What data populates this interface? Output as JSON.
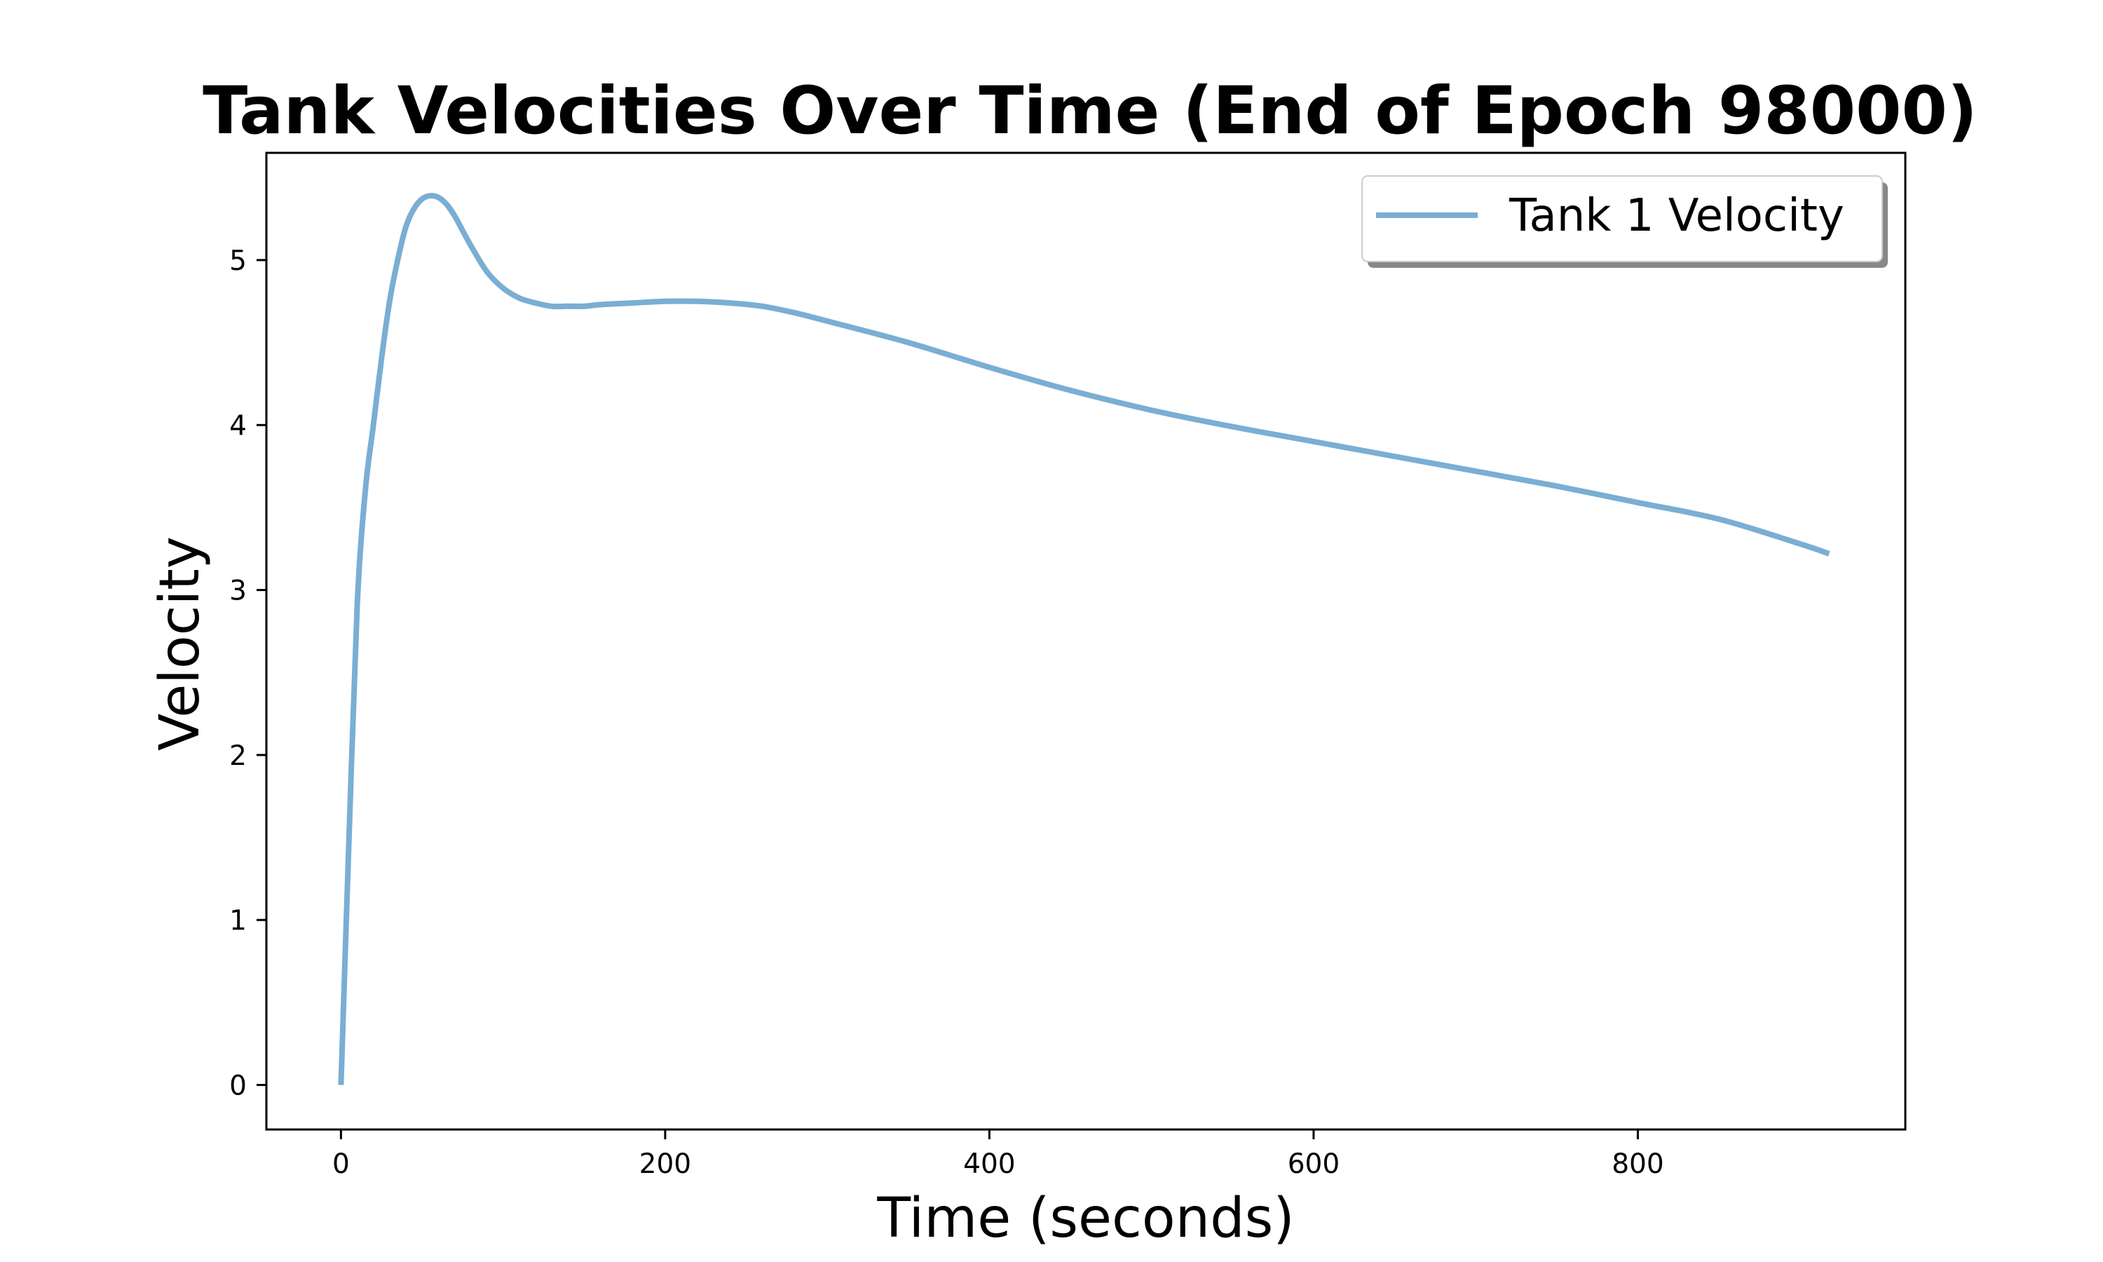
{
  "chart_data": {
    "type": "line",
    "title": "Tank Velocities Over Time (End of Epoch 98000)",
    "xlabel": "Time (seconds)",
    "ylabel": "Velocity",
    "xlim": [
      -46,
      965
    ],
    "ylim": [
      -0.27,
      5.65
    ],
    "xticks": [
      0,
      200,
      400,
      600,
      800
    ],
    "yticks": [
      0,
      1,
      2,
      3,
      4,
      5
    ],
    "grid": false,
    "legend_position": "top-right",
    "series": [
      {
        "name": "Tank 1 Velocity",
        "color": "#7aaed3",
        "x": [
          0,
          5,
          10,
          15,
          20,
          25,
          30,
          35,
          40,
          45,
          50,
          55,
          60,
          65,
          70,
          75,
          80,
          90,
          100,
          110,
          120,
          130,
          140,
          150,
          160,
          180,
          200,
          220,
          240,
          260,
          280,
          300,
          350,
          400,
          450,
          500,
          550,
          600,
          650,
          700,
          750,
          800,
          850,
          900,
          918
        ],
        "y": [
          0.0,
          1.5,
          2.9,
          3.6,
          4.0,
          4.4,
          4.75,
          5.0,
          5.2,
          5.31,
          5.37,
          5.39,
          5.38,
          5.34,
          5.27,
          5.18,
          5.09,
          4.93,
          4.83,
          4.77,
          4.74,
          4.72,
          4.72,
          4.72,
          4.73,
          4.74,
          4.75,
          4.75,
          4.74,
          4.72,
          4.68,
          4.63,
          4.5,
          4.35,
          4.21,
          4.09,
          3.99,
          3.9,
          3.81,
          3.72,
          3.63,
          3.53,
          3.43,
          3.28,
          3.22
        ]
      }
    ]
  }
}
